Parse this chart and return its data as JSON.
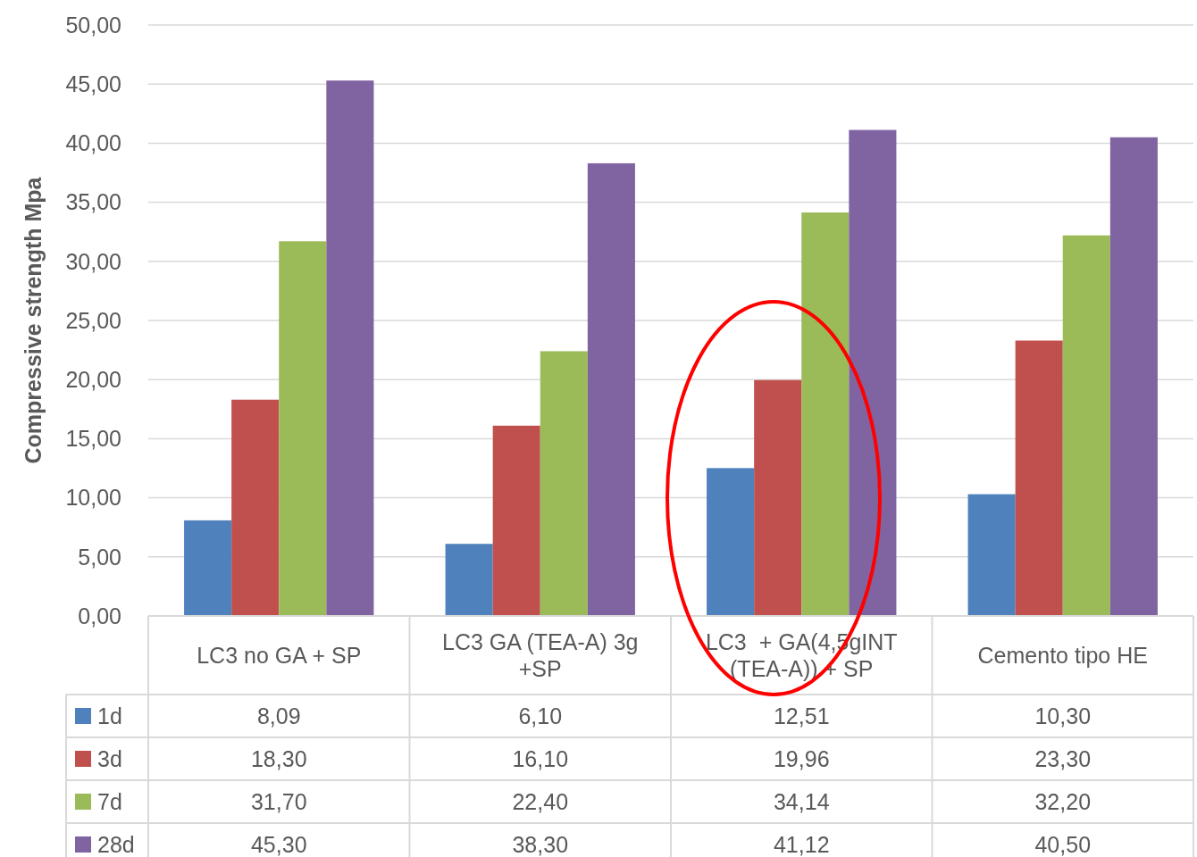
{
  "chart_data": {
    "type": "bar",
    "ylabel": "Compressive strength Mpa",
    "categories": [
      "LC3 no GA + SP",
      "LC3 GA (TEA-A) 3g +SP",
      "LC3  + GA(4,5gINT (TEA-A)) + SP",
      "Cemento tipo HE"
    ],
    "series": [
      {
        "name": "1d",
        "color": "#4f81bd",
        "values": [
          8.09,
          6.1,
          12.51,
          10.3
        ],
        "value_labels": [
          "8,09",
          "6,10",
          "12,51",
          "10,30"
        ]
      },
      {
        "name": "3d",
        "color": "#c0504d",
        "values": [
          18.3,
          16.1,
          19.96,
          23.3
        ],
        "value_labels": [
          "18,30",
          "16,10",
          "19,96",
          "23,30"
        ]
      },
      {
        "name": "7d",
        "color": "#9bbb59",
        "values": [
          31.7,
          22.4,
          34.14,
          32.2
        ],
        "value_labels": [
          "31,70",
          "22,40",
          "34,14",
          "32,20"
        ]
      },
      {
        "name": "28d",
        "color": "#8064a2",
        "values": [
          45.3,
          38.3,
          41.12,
          40.5
        ],
        "value_labels": [
          "45,30",
          "38,30",
          "41,12",
          "40,50"
        ]
      }
    ],
    "ylim": [
      0,
      50
    ],
    "yticks": [
      {
        "value": 0,
        "label": "0,00"
      },
      {
        "value": 5,
        "label": "5,00"
      },
      {
        "value": 10,
        "label": "10,00"
      },
      {
        "value": 15,
        "label": "15,00"
      },
      {
        "value": 20,
        "label": "20,00"
      },
      {
        "value": 25,
        "label": "25,00"
      },
      {
        "value": 30,
        "label": "30,00"
      },
      {
        "value": 35,
        "label": "35,00"
      },
      {
        "value": 40,
        "label": "40,00"
      },
      {
        "value": 45,
        "label": "45,00"
      },
      {
        "value": 50,
        "label": "50,00"
      }
    ],
    "grid": "y",
    "legend": "bottom"
  }
}
